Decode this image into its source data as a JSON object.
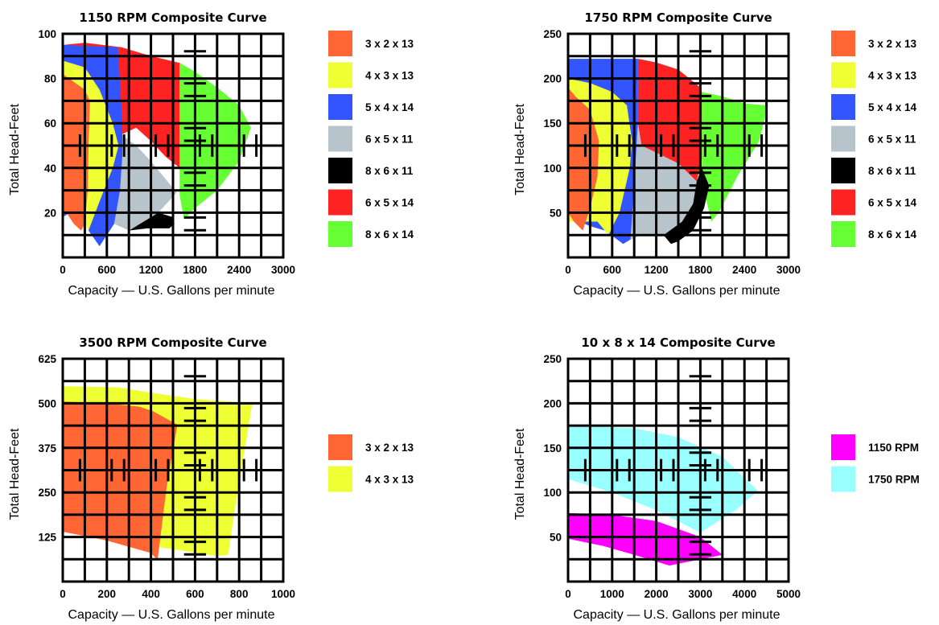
{
  "chart_data": [
    {
      "type": "area",
      "title": "1150 RPM Composite Curve",
      "xlabel": "Capacity — U.S. Gallons per minute",
      "ylabel": "Total Head-Feet",
      "xlim": [
        0,
        3000
      ],
      "ylim": [
        0,
        100
      ],
      "xticks": [
        "0",
        "600",
        "1200",
        "1800",
        "2400",
        "3000"
      ],
      "yticks": [
        "20",
        "40",
        "60",
        "80",
        "100"
      ],
      "grid": true,
      "legend_position": "right",
      "series": [
        {
          "name": "8 x 6 x 14",
          "color": "#66ff33",
          "points": [
            [
              1590,
              87
            ],
            [
              1800,
              83
            ],
            [
              2100,
              76
            ],
            [
              2400,
              68
            ],
            [
              2560,
              58
            ],
            [
              2400,
              43
            ],
            [
              2100,
              30
            ],
            [
              1800,
              22
            ],
            [
              1650,
              17
            ],
            [
              1590,
              28
            ]
          ]
        },
        {
          "name": "6 x 5 x 14",
          "color": "#ff2222",
          "points": [
            [
              0,
              95
            ],
            [
              300,
              96
            ],
            [
              800,
              94
            ],
            [
              1200,
              90
            ],
            [
              1590,
              87
            ],
            [
              1590,
              17
            ],
            [
              1590,
              40
            ],
            [
              1400,
              45
            ],
            [
              1200,
              52
            ],
            [
              1000,
              58
            ],
            [
              800,
              55
            ]
          ]
        },
        {
          "name": "8 x 6 x 11",
          "color": "#000000",
          "points": [
            [
              900,
              12
            ],
            [
              1300,
              20
            ],
            [
              1500,
              18
            ],
            [
              1520,
              15
            ],
            [
              1450,
              13
            ],
            [
              1150,
              13
            ]
          ]
        },
        {
          "name": "6 x 5 x 11",
          "color": "#b8c4cc",
          "points": [
            [
              800,
              55
            ],
            [
              1000,
              50
            ],
            [
              1200,
              43
            ],
            [
              1550,
              29
            ],
            [
              1300,
              20
            ],
            [
              900,
              12
            ],
            [
              700,
              15
            ],
            [
              780,
              30
            ],
            [
              810,
              45
            ]
          ]
        },
        {
          "name": "5 x 4 x 14",
          "color": "#3355ff",
          "points": [
            [
              0,
              95
            ],
            [
              750,
              94
            ],
            [
              810,
              60
            ],
            [
              810,
              45
            ],
            [
              780,
              30
            ],
            [
              700,
              15
            ],
            [
              500,
              5
            ],
            [
              350,
              12
            ],
            [
              250,
              25
            ],
            [
              100,
              20
            ],
            [
              0,
              18
            ]
          ]
        },
        {
          "name": "4 x 3 x 13",
          "color": "#eeff33",
          "points": [
            [
              0,
              88
            ],
            [
              300,
              85
            ],
            [
              500,
              75
            ],
            [
              680,
              60
            ],
            [
              760,
              50
            ],
            [
              680,
              40
            ],
            [
              500,
              25
            ],
            [
              350,
              12
            ],
            [
              250,
              20
            ],
            [
              100,
              22
            ],
            [
              0,
              22
            ]
          ]
        },
        {
          "name": "3 x 2 x 13",
          "color": "#ff6633",
          "points": [
            [
              0,
              82
            ],
            [
              300,
              75
            ],
            [
              370,
              70
            ],
            [
              350,
              50
            ],
            [
              340,
              30
            ],
            [
              300,
              15
            ],
            [
              250,
              12
            ],
            [
              150,
              15
            ],
            [
              50,
              20
            ],
            [
              0,
              20
            ]
          ]
        }
      ]
    },
    {
      "type": "area",
      "title": "1750 RPM Composite Curve",
      "xlabel": "Capacity — U.S. Gallons per minute",
      "ylabel": "Total Head-Feet",
      "xlim": [
        0,
        3000
      ],
      "ylim": [
        0,
        250
      ],
      "xticks": [
        "0",
        "600",
        "1200",
        "1800",
        "2400",
        "3000"
      ],
      "yticks": [
        "50",
        "100",
        "150",
        "200",
        "250"
      ],
      "grid": true,
      "legend_position": "right",
      "series": [
        {
          "name": "8 x 6 x 14",
          "color": "#66ff33",
          "points": [
            [
              1820,
              185
            ],
            [
              2100,
              180
            ],
            [
              2400,
              172
            ],
            [
              2720,
              170
            ],
            [
              2600,
              130
            ],
            [
              2300,
              90
            ],
            [
              2050,
              50
            ],
            [
              1950,
              40
            ],
            [
              1850,
              75
            ],
            [
              1820,
              100
            ]
          ]
        },
        {
          "name": "6 x 5 x 14",
          "color": "#ff2222",
          "points": [
            [
              950,
              222
            ],
            [
              1200,
              218
            ],
            [
              1500,
              210
            ],
            [
              1800,
              190
            ],
            [
              1820,
              185
            ],
            [
              1820,
              110
            ],
            [
              1750,
              85
            ],
            [
              1500,
              105
            ],
            [
              1250,
              115
            ],
            [
              1000,
              125
            ],
            [
              950,
              150
            ]
          ]
        },
        {
          "name": "8 x 6 x 11",
          "color": "#000000",
          "points": [
            [
              1820,
              100
            ],
            [
              1920,
              80
            ],
            [
              1850,
              55
            ],
            [
              1700,
              30
            ],
            [
              1500,
              18
            ],
            [
              1400,
              15
            ],
            [
              1300,
              25
            ],
            [
              1550,
              40
            ],
            [
              1700,
              60
            ],
            [
              1750,
              85
            ]
          ]
        },
        {
          "name": "6 x 5 x 11",
          "color": "#b8c4cc",
          "points": [
            [
              950,
              150
            ],
            [
              1000,
              125
            ],
            [
              1250,
              115
            ],
            [
              1500,
              105
            ],
            [
              1750,
              85
            ],
            [
              1700,
              60
            ],
            [
              1550,
              40
            ],
            [
              1300,
              25
            ],
            [
              1000,
              25
            ],
            [
              850,
              20
            ],
            [
              900,
              80
            ]
          ]
        },
        {
          "name": "5 x 4 x 14",
          "color": "#3355ff",
          "points": [
            [
              0,
              222
            ],
            [
              950,
              222
            ],
            [
              950,
              150
            ],
            [
              900,
              80
            ],
            [
              850,
              20
            ],
            [
              750,
              15
            ],
            [
              500,
              30
            ],
            [
              300,
              35
            ],
            [
              150,
              40
            ],
            [
              0,
              45
            ]
          ]
        },
        {
          "name": "4 x 3 x 13",
          "color": "#eeff33",
          "points": [
            [
              0,
              200
            ],
            [
              300,
              195
            ],
            [
              600,
              185
            ],
            [
              800,
              170
            ],
            [
              870,
              130
            ],
            [
              840,
              100
            ],
            [
              700,
              50
            ],
            [
              550,
              25
            ],
            [
              400,
              40
            ],
            [
              250,
              40
            ],
            [
              0,
              40
            ]
          ]
        },
        {
          "name": "3 x 2 x 13",
          "color": "#ff6633",
          "points": [
            [
              0,
              190
            ],
            [
              100,
              180
            ],
            [
              300,
              165
            ],
            [
              420,
              130
            ],
            [
              400,
              90
            ],
            [
              300,
              55
            ],
            [
              200,
              30
            ],
            [
              80,
              40
            ],
            [
              0,
              50
            ]
          ]
        }
      ]
    },
    {
      "type": "area",
      "title": "3500 RPM Composite Curve",
      "xlabel": "Capacity — U.S. Gallons per minute",
      "ylabel": "Total Head-Feet",
      "xlim": [
        0,
        1000
      ],
      "ylim": [
        0,
        625
      ],
      "xticks": [
        "0",
        "200",
        "400",
        "600",
        "800",
        "1000"
      ],
      "yticks": [
        "125",
        "250",
        "375",
        "500",
        "625"
      ],
      "grid": true,
      "legend_position": "right",
      "series": [
        {
          "name": "4 x 3 x 13",
          "color": "#eeff33",
          "points": [
            [
              0,
              548
            ],
            [
              250,
              545
            ],
            [
              400,
              530
            ],
            [
              600,
              512
            ],
            [
              860,
              500
            ],
            [
              820,
              350
            ],
            [
              780,
              200
            ],
            [
              750,
              75
            ],
            [
              700,
              72
            ],
            [
              400,
              100
            ],
            [
              100,
              130
            ],
            [
              0,
              140
            ]
          ]
        },
        {
          "name": "3 x 2 x 13",
          "color": "#ff6633",
          "points": [
            [
              0,
              505
            ],
            [
              200,
              500
            ],
            [
              350,
              490
            ],
            [
              410,
              478
            ],
            [
              520,
              440
            ],
            [
              470,
              260
            ],
            [
              430,
              60
            ],
            [
              400,
              80
            ],
            [
              200,
              115
            ],
            [
              0,
              140
            ]
          ]
        }
      ]
    },
    {
      "type": "area",
      "title": "10 x 8 x 14  Composite Curve",
      "xlabel": "Capacity — U.S. Gallons per minute",
      "ylabel": "Total Head-Feet",
      "xlim": [
        0,
        5000
      ],
      "ylim": [
        0,
        250
      ],
      "xticks": [
        "0",
        "1000",
        "2000",
        "3000",
        "4000",
        "5000"
      ],
      "yticks": [
        "50",
        "100",
        "150",
        "200",
        "250"
      ],
      "grid": true,
      "legend_position": "right",
      "series": [
        {
          "name": "1750 RPM",
          "color": "#99ffff",
          "points": [
            [
              0,
              175
            ],
            [
              1500,
              172
            ],
            [
              2500,
              162
            ],
            [
              3500,
              140
            ],
            [
              4300,
              102
            ],
            [
              3800,
              80
            ],
            [
              3000,
              55
            ],
            [
              2000,
              80
            ],
            [
              1000,
              100
            ],
            [
              0,
              115
            ]
          ]
        },
        {
          "name": "1150 RPM",
          "color": "#ff00ff",
          "points": [
            [
              0,
              77
            ],
            [
              1000,
              75
            ],
            [
              2000,
              68
            ],
            [
              3000,
              50
            ],
            [
              3500,
              30
            ],
            [
              3000,
              25
            ],
            [
              2300,
              18
            ],
            [
              1500,
              30
            ],
            [
              800,
              40
            ],
            [
              0,
              48
            ]
          ]
        }
      ]
    }
  ]
}
